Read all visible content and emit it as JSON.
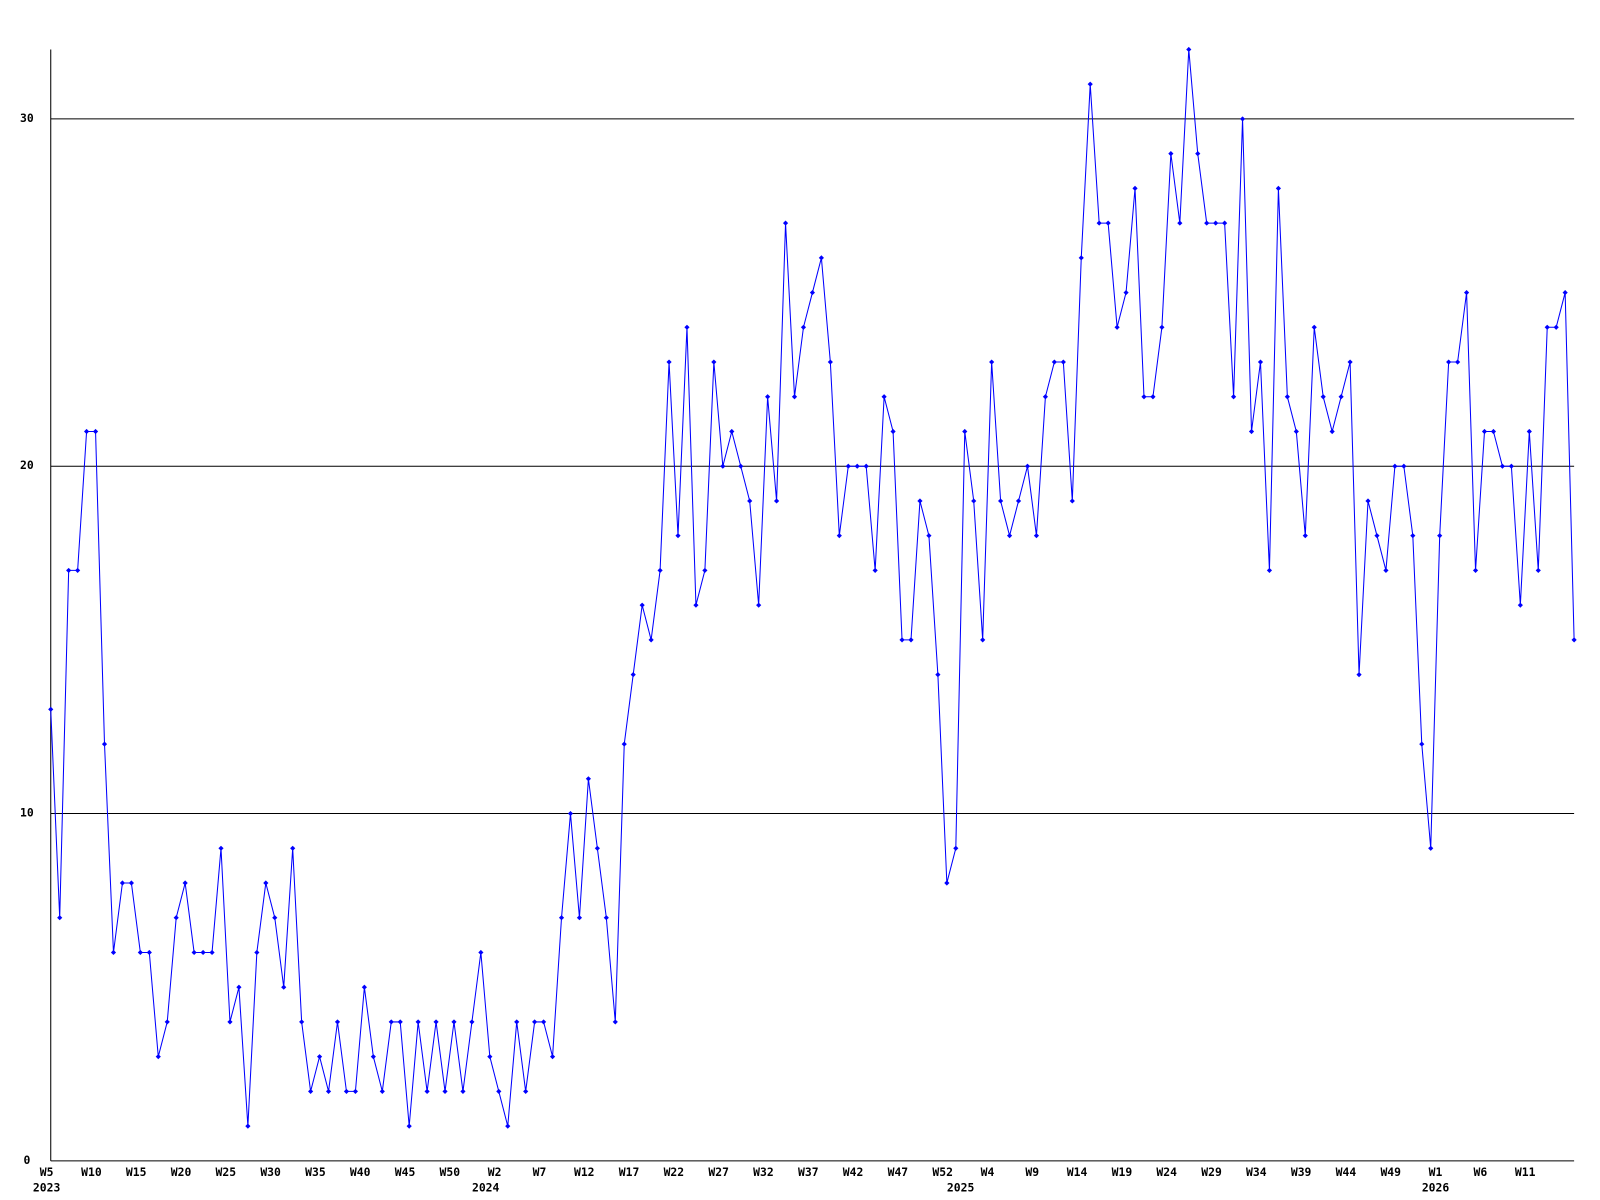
{
  "chart_data": {
    "type": "line",
    "color": "#0000ff",
    "grid": true,
    "ylim": [
      0,
      32
    ],
    "yticks": [
      0,
      10,
      20,
      30
    ],
    "categories": [
      "W5",
      null,
      null,
      null,
      null,
      "W10",
      null,
      null,
      null,
      null,
      "W15",
      null,
      null,
      null,
      null,
      "W20",
      null,
      null,
      null,
      null,
      "W25",
      null,
      null,
      null,
      null,
      "W30",
      null,
      null,
      null,
      null,
      "W35",
      null,
      null,
      null,
      null,
      "W40",
      null,
      null,
      null,
      null,
      "W45",
      null,
      null,
      null,
      null,
      "W50",
      null,
      null,
      null,
      null,
      "W2",
      null,
      null,
      null,
      null,
      "W7",
      null,
      null,
      null,
      null,
      "W12",
      null,
      null,
      null,
      null,
      "W17",
      null,
      null,
      null,
      null,
      "W22",
      null,
      null,
      null,
      null,
      "W27",
      null,
      null,
      null,
      null,
      "W32",
      null,
      null,
      null,
      null,
      "W37",
      null,
      null,
      null,
      null,
      "W42",
      null,
      null,
      null,
      null,
      "W47",
      null,
      null,
      null,
      null,
      "W52",
      null,
      null,
      null,
      null,
      "W4",
      null,
      null,
      null,
      null,
      "W9",
      null,
      null,
      null,
      null,
      "W14",
      null,
      null,
      null,
      null,
      "W19",
      null,
      null,
      null,
      null,
      "W24",
      null,
      null,
      null,
      null,
      "W29",
      null,
      null,
      null,
      null,
      "W34",
      null,
      null,
      null,
      null,
      "W39",
      null,
      null,
      null,
      null,
      "W44",
      null,
      null,
      null,
      null,
      "W49",
      null,
      null,
      null,
      null,
      "W1",
      null,
      null,
      null,
      null,
      "W6",
      null,
      null,
      null,
      null,
      "W11",
      null,
      null,
      null,
      null,
      null
    ],
    "year_labels": [
      "2023",
      null,
      null,
      null,
      null,
      null,
      null,
      null,
      null,
      null,
      null,
      null,
      null,
      null,
      null,
      null,
      null,
      null,
      null,
      null,
      null,
      null,
      null,
      null,
      null,
      null,
      null,
      null,
      null,
      null,
      null,
      null,
      null,
      null,
      null,
      null,
      null,
      null,
      null,
      null,
      null,
      null,
      null,
      null,
      null,
      null,
      null,
      null,
      null,
      "2024",
      null,
      null,
      null,
      null,
      null,
      null,
      null,
      null,
      null,
      null,
      null,
      null,
      null,
      null,
      null,
      null,
      null,
      null,
      null,
      null,
      null,
      null,
      null,
      null,
      null,
      null,
      null,
      null,
      null,
      null,
      null,
      null,
      null,
      null,
      null,
      null,
      null,
      null,
      null,
      null,
      null,
      null,
      null,
      null,
      null,
      null,
      null,
      null,
      null,
      null,
      null,
      null,
      "2025",
      null,
      null,
      null,
      null,
      null,
      null,
      null,
      null,
      null,
      null,
      null,
      null,
      null,
      null,
      null,
      null,
      null,
      null,
      null,
      null,
      null,
      null,
      null,
      null,
      null,
      null,
      null,
      null,
      null,
      null,
      null,
      null,
      null,
      null,
      null,
      null,
      null,
      null,
      null,
      null,
      null,
      null,
      null,
      null,
      null,
      null,
      null,
      null,
      null,
      null,
      null,
      null,
      "2026",
      null,
      null,
      null,
      null,
      null,
      null,
      null,
      null,
      null,
      null,
      null,
      null,
      null,
      null,
      null
    ],
    "values": [
      13,
      7,
      17,
      17,
      21,
      21,
      12,
      6,
      8,
      8,
      6,
      6,
      3,
      4,
      7,
      8,
      6,
      6,
      6,
      9,
      4,
      5,
      1,
      6,
      8,
      7,
      5,
      9,
      4,
      2,
      3,
      2,
      4,
      2,
      2,
      5,
      3,
      2,
      4,
      4,
      1,
      4,
      2,
      4,
      2,
      4,
      2,
      4,
      6,
      3,
      2,
      1,
      4,
      2,
      4,
      4,
      3,
      7,
      10,
      7,
      11,
      9,
      7,
      4,
      12,
      14,
      16,
      15,
      17,
      23,
      18,
      24,
      16,
      17,
      23,
      20,
      21,
      20,
      19,
      16,
      22,
      19,
      27,
      22,
      24,
      25,
      26,
      23,
      18,
      20,
      20,
      20,
      17,
      22,
      21,
      15,
      15,
      19,
      18,
      14,
      8,
      9,
      21,
      19,
      15,
      23,
      19,
      18,
      19,
      20,
      18,
      22,
      23,
      23,
      19,
      26,
      31,
      27,
      27,
      24,
      25,
      28,
      22,
      22,
      24,
      29,
      27,
      32,
      29,
      27,
      27,
      27,
      22,
      30,
      21,
      23,
      17,
      28,
      22,
      21,
      18,
      24,
      22,
      21,
      22,
      23,
      14,
      19,
      18,
      17,
      20,
      20,
      18,
      12,
      9,
      18,
      23,
      23,
      25,
      17,
      21,
      21,
      20,
      20,
      16,
      21,
      17,
      24,
      24,
      25,
      15
    ]
  }
}
